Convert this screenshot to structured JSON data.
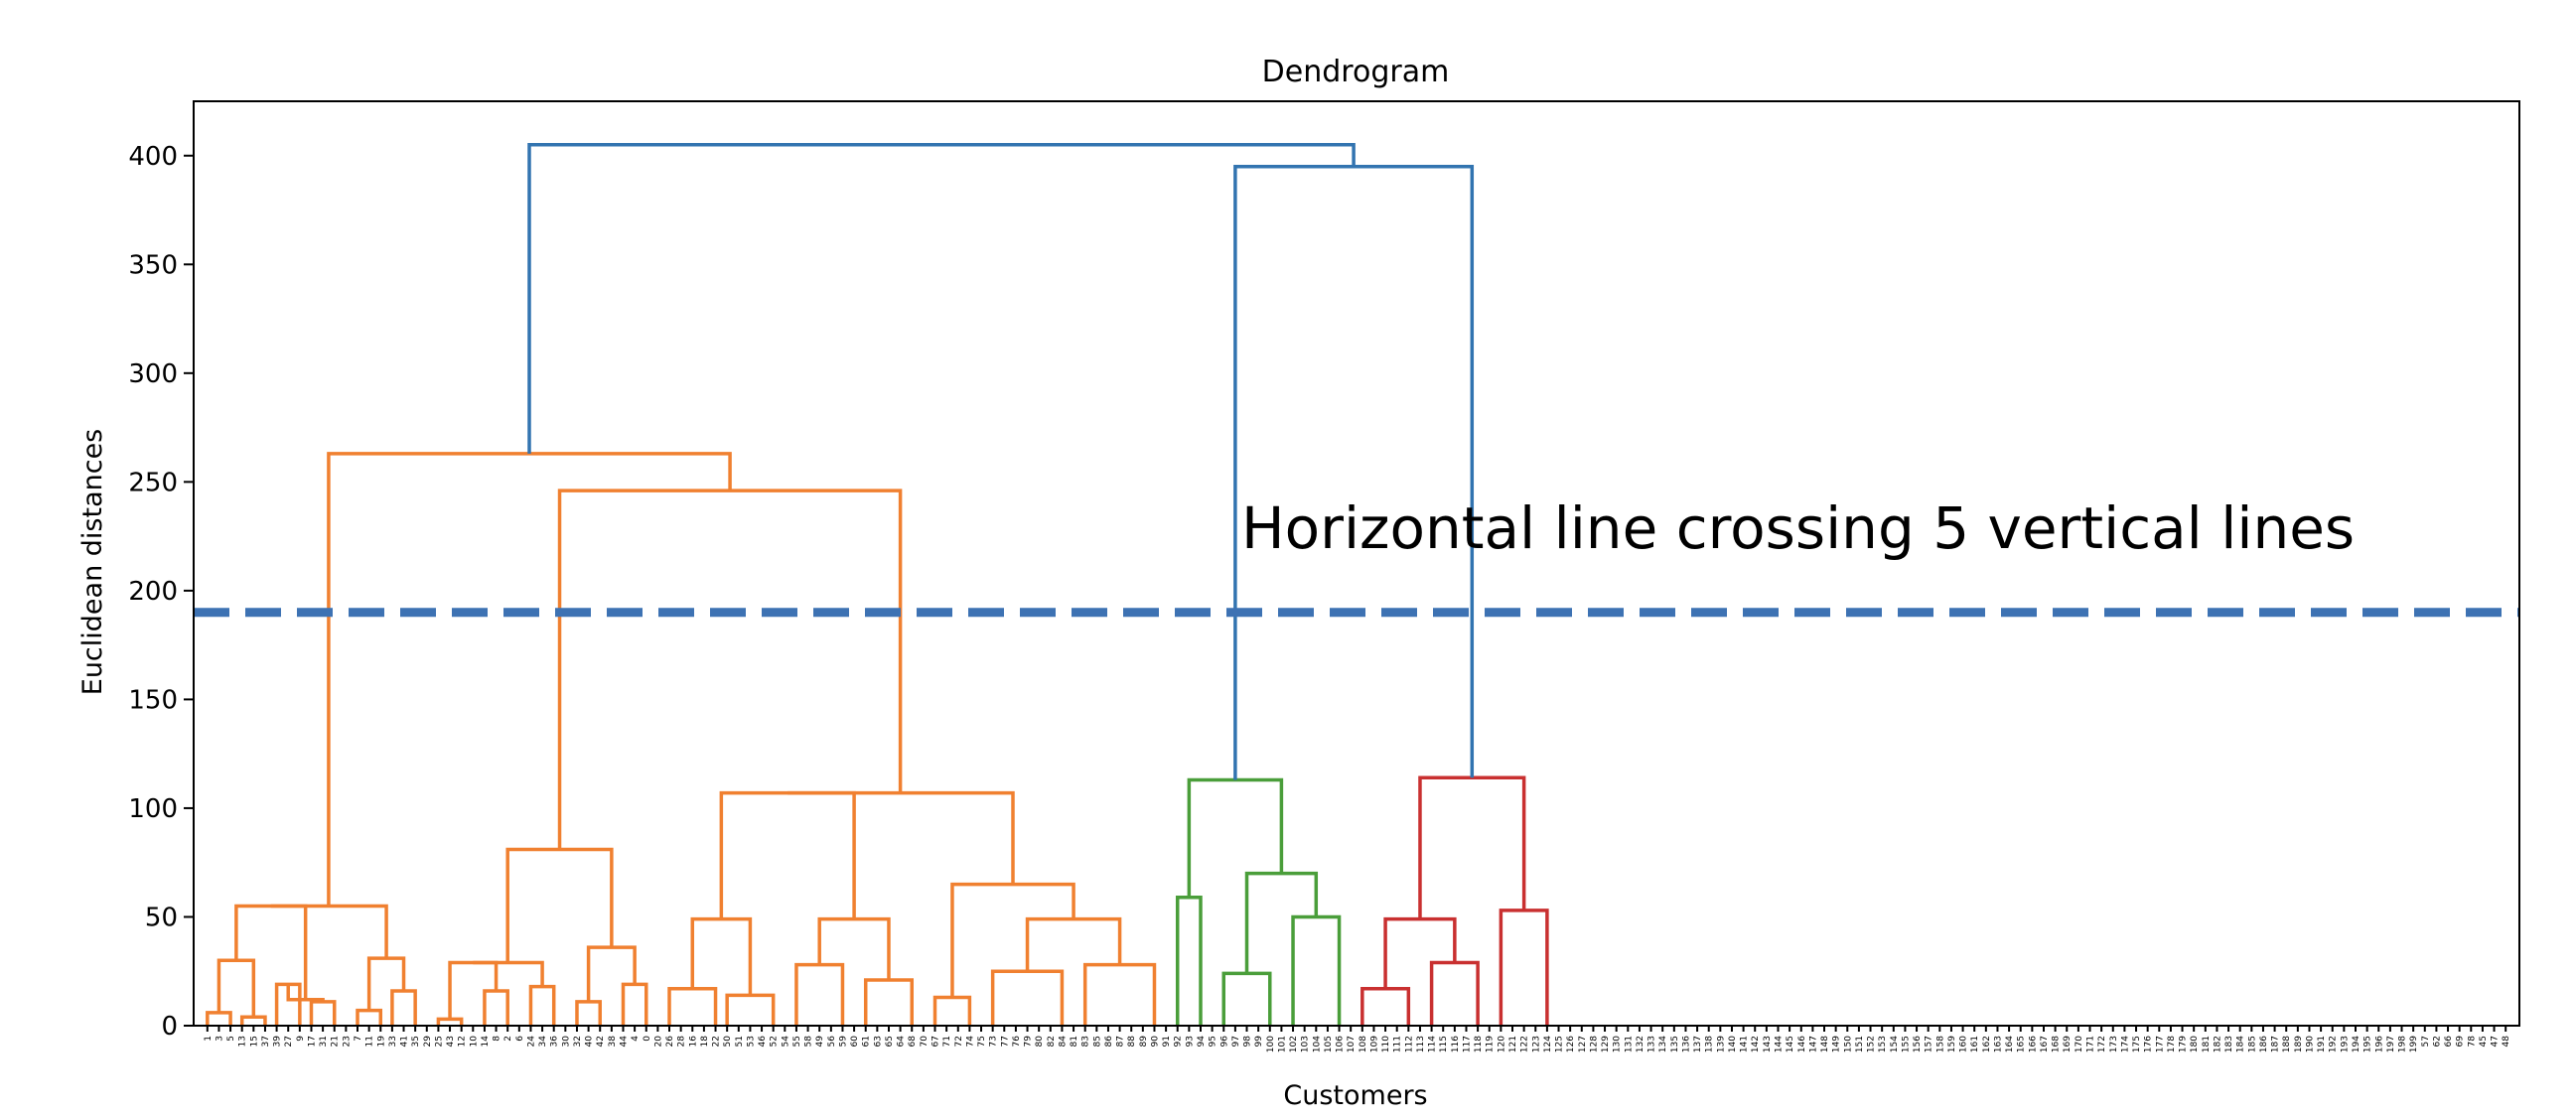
{
  "chart_data": {
    "type": "dendrogram",
    "title": "Dendrogram",
    "xlabel": "Customers",
    "ylabel": "Euclidean distances",
    "ylim": [
      0,
      425
    ],
    "yticks": [
      0,
      50,
      100,
      150,
      200,
      250,
      300,
      350,
      400
    ],
    "grid": false,
    "annotation": "Horizontal line crossing 5 vertical lines",
    "cut_line": {
      "y": 190,
      "color": "#3d72b3",
      "style": "dashed"
    },
    "colors": {
      "above_threshold": "#3274b0",
      "c1": "#f08030",
      "c2": "#4a9e3a",
      "c3": "#c93030"
    },
    "leaves": [
      "1",
      "3",
      "5",
      "13",
      "15",
      "37",
      "39",
      "27",
      "9",
      "17",
      "31",
      "21",
      "23",
      "7",
      "11",
      "19",
      "33",
      "41",
      "35",
      "29",
      "25",
      "43",
      "12",
      "10",
      "14",
      "8",
      "2",
      "6",
      "24",
      "34",
      "36",
      "30",
      "32",
      "40",
      "42",
      "38",
      "44",
      "4",
      "0",
      "20",
      "26",
      "28",
      "16",
      "18",
      "22",
      "50",
      "51",
      "53",
      "46",
      "52",
      "54",
      "55",
      "58",
      "49",
      "56",
      "59",
      "60",
      "61",
      "63",
      "65",
      "64",
      "68",
      "70",
      "67",
      "71",
      "72",
      "74",
      "75",
      "73",
      "77",
      "76",
      "79",
      "80",
      "82",
      "84",
      "81",
      "83",
      "85",
      "86",
      "87",
      "88",
      "89",
      "90",
      "91",
      "92",
      "93",
      "94",
      "95",
      "96",
      "97",
      "98",
      "99",
      "100",
      "101",
      "102",
      "103",
      "104",
      "105",
      "106",
      "107",
      "108",
      "109",
      "110",
      "111",
      "112",
      "113",
      "114",
      "115",
      "116",
      "117",
      "118",
      "119",
      "120",
      "121",
      "122",
      "123",
      "124",
      "125",
      "126",
      "127",
      "128",
      "129",
      "130",
      "131",
      "132",
      "133",
      "134",
      "135",
      "136",
      "137",
      "138",
      "139",
      "140",
      "141",
      "142",
      "143",
      "144",
      "145",
      "146",
      "147",
      "148",
      "149",
      "150",
      "151",
      "152",
      "153",
      "154",
      "155",
      "156",
      "157",
      "158",
      "159",
      "160",
      "161",
      "162",
      "163",
      "164",
      "165",
      "166",
      "167",
      "168",
      "169",
      "170",
      "171",
      "172",
      "173",
      "174",
      "175",
      "176",
      "177",
      "178",
      "179",
      "180",
      "181",
      "182",
      "183",
      "184",
      "185",
      "186",
      "187",
      "188",
      "189",
      "190",
      "191",
      "192",
      "193",
      "194",
      "195",
      "196",
      "197",
      "198",
      "199",
      "57",
      "62",
      "66",
      "69",
      "78",
      "45",
      "47",
      "48"
    ],
    "links": [
      {
        "x1": 0.5,
        "x2": 2.5,
        "h1": 0,
        "h2": 0,
        "y": 6,
        "c": "c1"
      },
      {
        "x1": 3.5,
        "x2": 5.5,
        "h1": 0,
        "h2": 0,
        "y": 4,
        "c": "c1"
      },
      {
        "x1": 1.5,
        "x2": 4.5,
        "h1": 6,
        "h2": 4,
        "y": 30,
        "c": "c1"
      },
      {
        "x1": 6.5,
        "x2": 8.5,
        "h1": 0,
        "h2": 0,
        "y": 19,
        "c": "c1"
      },
      {
        "x1": 9.5,
        "x2": 11.5,
        "h1": 0,
        "h2": 0,
        "y": 11,
        "c": "c1"
      },
      {
        "x1": 7.5,
        "x2": 10.5,
        "h1": 19,
        "h2": 11,
        "y": 12,
        "c": "c1"
      },
      {
        "x1": 3.0,
        "x2": 9.0,
        "h1": 30,
        "h2": 12,
        "y": 55,
        "c": "c1"
      },
      {
        "x1": 13.5,
        "x2": 15.5,
        "h1": 0,
        "h2": 0,
        "y": 7,
        "c": "c1"
      },
      {
        "x1": 16.5,
        "x2": 18.5,
        "h1": 0,
        "h2": 0,
        "y": 16,
        "c": "c1"
      },
      {
        "x1": 14.5,
        "x2": 17.5,
        "h1": 7,
        "h2": 16,
        "y": 31,
        "c": "c1"
      },
      {
        "x1": 6.0,
        "x2": 16.0,
        "h1": 55,
        "h2": 31,
        "y": 55,
        "c": "c1"
      },
      {
        "x1": 20.5,
        "x2": 22.5,
        "h1": 0,
        "h2": 0,
        "y": 3,
        "c": "c1"
      },
      {
        "x1": 24.5,
        "x2": 26.5,
        "h1": 0,
        "h2": 0,
        "y": 16,
        "c": "c1"
      },
      {
        "x1": 21.5,
        "x2": 25.5,
        "h1": 3,
        "h2": 16,
        "y": 29,
        "c": "c1"
      },
      {
        "x1": 28.5,
        "x2": 30.5,
        "h1": 0,
        "h2": 0,
        "y": 18,
        "c": "c1"
      },
      {
        "x1": 23.5,
        "x2": 29.5,
        "h1": 29,
        "h2": 18,
        "y": 29,
        "c": "c1"
      },
      {
        "x1": 32.5,
        "x2": 34.5,
        "h1": 0,
        "h2": 0,
        "y": 11,
        "c": "c1"
      },
      {
        "x1": 36.5,
        "x2": 38.5,
        "h1": 0,
        "h2": 0,
        "y": 19,
        "c": "c1"
      },
      {
        "x1": 33.5,
        "x2": 37.5,
        "h1": 11,
        "h2": 19,
        "y": 36,
        "c": "c1"
      },
      {
        "x1": 26.5,
        "x2": 35.5,
        "h1": 29,
        "h2": 36,
        "y": 81,
        "c": "c1"
      },
      {
        "x1": 40.5,
        "x2": 44.5,
        "h1": 0,
        "h2": 0,
        "y": 17,
        "c": "c1"
      },
      {
        "x1": 45.5,
        "x2": 49.5,
        "h1": 0,
        "h2": 0,
        "y": 14,
        "c": "c1"
      },
      {
        "x1": 42.5,
        "x2": 47.5,
        "h1": 17,
        "h2": 14,
        "y": 49,
        "c": "c1"
      },
      {
        "x1": 51.5,
        "x2": 55.5,
        "h1": 0,
        "h2": 0,
        "y": 28,
        "c": "c1"
      },
      {
        "x1": 57.5,
        "x2": 61.5,
        "h1": 0,
        "h2": 0,
        "y": 21,
        "c": "c1"
      },
      {
        "x1": 53.5,
        "x2": 59.5,
        "h1": 28,
        "h2": 21,
        "y": 49,
        "c": "c1"
      },
      {
        "x1": 45.0,
        "x2": 56.5,
        "h1": 49,
        "h2": 49,
        "y": 107,
        "c": "c1"
      },
      {
        "x1": 63.5,
        "x2": 66.5,
        "h1": 0,
        "h2": 0,
        "y": 13,
        "c": "c1"
      },
      {
        "x1": 68.5,
        "x2": 74.5,
        "h1": 0,
        "h2": 0,
        "y": 25,
        "c": "c1"
      },
      {
        "x1": 76.5,
        "x2": 82.5,
        "h1": 0,
        "h2": 0,
        "y": 28,
        "c": "c1"
      },
      {
        "x1": 71.5,
        "x2": 79.5,
        "h1": 25,
        "h2": 28,
        "y": 49,
        "c": "c1"
      },
      {
        "x1": 65.0,
        "x2": 75.5,
        "h1": 13,
        "h2": 49,
        "y": 65,
        "c": "c1"
      },
      {
        "x1": 50.75,
        "x2": 70.25,
        "h1": 107,
        "h2": 65,
        "y": 107,
        "c": "c1"
      },
      {
        "x1": 31.0,
        "x2": 60.5,
        "h1": 81,
        "h2": 107,
        "y": 246,
        "c": "c1"
      },
      {
        "x1": 11.0,
        "x2": 45.75,
        "h1": 55,
        "h2": 246,
        "y": 263,
        "c": "c1"
      },
      {
        "x1": 84.5,
        "x2": 86.5,
        "h1": 0,
        "h2": 0,
        "y": 59,
        "c": "c2"
      },
      {
        "x1": 88.5,
        "x2": 92.5,
        "h1": 0,
        "h2": 0,
        "y": 24,
        "c": "c2"
      },
      {
        "x1": 94.5,
        "x2": 98.5,
        "h1": 0,
        "h2": 0,
        "y": 50,
        "c": "c2"
      },
      {
        "x1": 90.5,
        "x2": 96.5,
        "h1": 24,
        "h2": 50,
        "y": 70,
        "c": "c2"
      },
      {
        "x1": 85.5,
        "x2": 93.5,
        "h1": 59,
        "h2": 70,
        "y": 113,
        "c": "c2"
      },
      {
        "x1": 100.5,
        "x2": 104.5,
        "h1": 0,
        "h2": 0,
        "y": 17,
        "c": "c3"
      },
      {
        "x1": 106.5,
        "x2": 110.5,
        "h1": 0,
        "h2": 0,
        "y": 29,
        "c": "c3"
      },
      {
        "x1": 102.5,
        "x2": 108.5,
        "h1": 17,
        "h2": 29,
        "y": 49,
        "c": "c3"
      },
      {
        "x1": 112.5,
        "x2": 116.5,
        "h1": 0,
        "h2": 0,
        "y": 53,
        "c": "c3"
      },
      {
        "x1": 105.5,
        "x2": 114.5,
        "h1": 49,
        "h2": 53,
        "y": 114,
        "c": "c3"
      },
      {
        "x1": 89.5,
        "x2": 110.0,
        "h1": 113,
        "h2": 114,
        "y": 395,
        "c": "above_threshold"
      },
      {
        "x1": 28.375,
        "x2": 99.75,
        "h1": 263,
        "h2": 395,
        "y": 405,
        "c": "above_threshold"
      }
    ]
  }
}
